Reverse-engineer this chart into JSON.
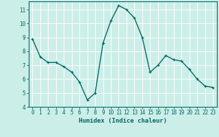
{
  "x": [
    0,
    1,
    2,
    3,
    4,
    5,
    6,
    7,
    8,
    9,
    10,
    11,
    12,
    13,
    14,
    15,
    16,
    17,
    18,
    19,
    20,
    21,
    22,
    23
  ],
  "y": [
    8.9,
    7.6,
    7.2,
    7.2,
    6.9,
    6.5,
    5.8,
    4.5,
    5.0,
    8.6,
    10.2,
    11.3,
    11.0,
    10.4,
    9.0,
    6.5,
    7.0,
    7.7,
    7.4,
    7.3,
    6.7,
    6.0,
    5.5,
    5.4
  ],
  "line_color": "#006666",
  "marker": "+",
  "background_color": "#cceee8",
  "grid_color": "#ffffff",
  "xlabel": "Humidex (Indice chaleur)",
  "ylim": [
    4,
    11.6
  ],
  "xlim": [
    -0.5,
    23.5
  ],
  "yticks": [
    4,
    5,
    6,
    7,
    8,
    9,
    10,
    11
  ],
  "xticks": [
    0,
    1,
    2,
    3,
    4,
    5,
    6,
    7,
    8,
    9,
    10,
    11,
    12,
    13,
    14,
    15,
    16,
    17,
    18,
    19,
    20,
    21,
    22,
    23
  ],
  "xtick_labels": [
    "0",
    "1",
    "2",
    "3",
    "4",
    "5",
    "6",
    "7",
    "8",
    "9",
    "10",
    "11",
    "12",
    "13",
    "14",
    "15",
    "16",
    "17",
    "18",
    "19",
    "20",
    "21",
    "22",
    "23"
  ],
  "xlabel_fontsize": 6.5,
  "tick_fontsize": 5.5,
  "line_width": 1.0,
  "marker_size": 3.5,
  "marker_edge_width": 0.8
}
